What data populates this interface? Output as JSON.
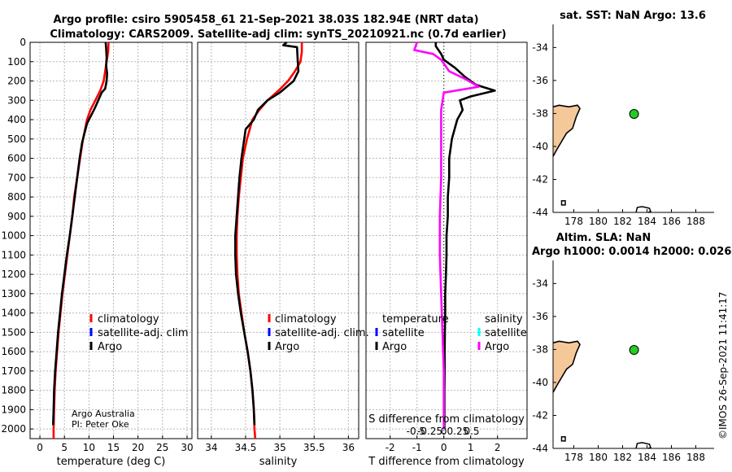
{
  "title": {
    "line1": "Argo profile: csiro 5905458_61 21-Sep-2021 38.03S 182.94E (NRT data)",
    "line2": "Climatology: CARS2009. Satellite-adj clim: synTS_20210921.nc (0.7d earlier)"
  },
  "credit": "Argo Australia",
  "pi": "PI: Peter Oke",
  "timestamp": "©IMOS 26-Sep-2021 11:41:17",
  "colors": {
    "climatology": "#ff0000",
    "satellite": "#0000ff",
    "argo": "#000000",
    "argo_salinity": "#ff00ff",
    "sat_salinity": "#00ffff",
    "land": "#f5c89a",
    "dot": "#22cc22"
  },
  "chart_data": [
    {
      "type": "line",
      "id": "temperature",
      "xlabel": "temperature (deg C)",
      "xlim": [
        -2,
        31
      ],
      "ylim": [
        0,
        2050
      ],
      "xticks": [
        0,
        5,
        10,
        15,
        20,
        25,
        30
      ],
      "xtick_labels": [
        "0",
        "5",
        "10",
        "15",
        "20",
        "25",
        "30"
      ],
      "yticks": [
        0,
        100,
        200,
        300,
        400,
        500,
        600,
        700,
        800,
        900,
        1000,
        1100,
        1200,
        1300,
        1400,
        1500,
        1600,
        1700,
        1800,
        1900,
        2000
      ],
      "ytick_labels": [
        "0",
        "100",
        "200",
        "300",
        "400",
        "500",
        "600",
        "700",
        "800",
        "900",
        "1000",
        "1100",
        "1200",
        "1300",
        "1400",
        "1500",
        "1600",
        "1700",
        "1800",
        "1900",
        "2000"
      ],
      "legend": [
        "climatology",
        "satellite-adj. clim",
        "Argo"
      ],
      "series": [
        {
          "name": "climatology",
          "color": "#ff0000",
          "points": [
            [
              14.0,
              0
            ],
            [
              13.9,
              50
            ],
            [
              13.6,
              100
            ],
            [
              13.3,
              150
            ],
            [
              13.0,
              200
            ],
            [
              12.3,
              250
            ],
            [
              11.3,
              300
            ],
            [
              10.3,
              350
            ],
            [
              9.6,
              400
            ],
            [
              8.8,
              500
            ],
            [
              8.2,
              600
            ],
            [
              7.6,
              700
            ],
            [
              7.0,
              800
            ],
            [
              6.6,
              900
            ],
            [
              6.1,
              1000
            ],
            [
              5.6,
              1100
            ],
            [
              5.1,
              1200
            ],
            [
              4.6,
              1300
            ],
            [
              4.2,
              1400
            ],
            [
              3.8,
              1500
            ],
            [
              3.5,
              1600
            ],
            [
              3.2,
              1700
            ],
            [
              3.0,
              1800
            ],
            [
              2.9,
              1900
            ],
            [
              2.8,
              2000
            ],
            [
              2.8,
              2050
            ]
          ]
        },
        {
          "name": "Argo",
          "color": "#000000",
          "points": [
            [
              13.4,
              0
            ],
            [
              13.5,
              30
            ],
            [
              13.6,
              80
            ],
            [
              13.5,
              120
            ],
            [
              13.7,
              160
            ],
            [
              13.6,
              200
            ],
            [
              13.3,
              240
            ],
            [
              12.6,
              260
            ],
            [
              11.9,
              300
            ],
            [
              11.2,
              340
            ],
            [
              10.4,
              380
            ],
            [
              9.6,
              420
            ],
            [
              9.1,
              470
            ],
            [
              8.6,
              520
            ],
            [
              8.1,
              600
            ],
            [
              7.6,
              700
            ],
            [
              7.1,
              800
            ],
            [
              6.6,
              900
            ],
            [
              6.1,
              1000
            ],
            [
              5.5,
              1100
            ],
            [
              5.0,
              1200
            ],
            [
              4.5,
              1300
            ],
            [
              4.1,
              1400
            ],
            [
              3.7,
              1500
            ],
            [
              3.4,
              1600
            ],
            [
              3.1,
              1700
            ],
            [
              2.9,
              1800
            ],
            [
              2.8,
              1900
            ],
            [
              2.7,
              1980
            ]
          ]
        }
      ]
    },
    {
      "type": "line",
      "id": "salinity",
      "xlabel": "salinity",
      "xlim": [
        33.8,
        36.15
      ],
      "ylim": [
        0,
        2050
      ],
      "xticks": [
        34,
        34.5,
        35,
        35.5,
        36
      ],
      "xtick_labels": [
        "34",
        "34.5",
        "35",
        "35.5",
        "36"
      ],
      "legend": [
        "climatology",
        "satellite-adj. clim.",
        "Argo"
      ],
      "series": [
        {
          "name": "climatology",
          "color": "#ff0000",
          "points": [
            [
              35.32,
              0
            ],
            [
              35.32,
              50
            ],
            [
              35.3,
              100
            ],
            [
              35.22,
              150
            ],
            [
              35.12,
              200
            ],
            [
              34.98,
              250
            ],
            [
              34.82,
              300
            ],
            [
              34.7,
              350
            ],
            [
              34.6,
              400
            ],
            [
              34.52,
              500
            ],
            [
              34.46,
              600
            ],
            [
              34.43,
              700
            ],
            [
              34.4,
              800
            ],
            [
              34.38,
              900
            ],
            [
              34.37,
              1000
            ],
            [
              34.37,
              1100
            ],
            [
              34.38,
              1200
            ],
            [
              34.4,
              1300
            ],
            [
              34.44,
              1400
            ],
            [
              34.48,
              1500
            ],
            [
              34.53,
              1600
            ],
            [
              34.57,
              1700
            ],
            [
              34.6,
              1800
            ],
            [
              34.62,
              1900
            ],
            [
              34.63,
              2000
            ],
            [
              34.64,
              2050
            ]
          ]
        },
        {
          "name": "Argo",
          "color": "#000000",
          "points": [
            [
              35.1,
              0
            ],
            [
              35.05,
              15
            ],
            [
              35.25,
              25
            ],
            [
              35.26,
              90
            ],
            [
              35.27,
              150
            ],
            [
              35.2,
              200
            ],
            [
              35.0,
              260
            ],
            [
              34.82,
              300
            ],
            [
              34.68,
              350
            ],
            [
              34.62,
              400
            ],
            [
              34.5,
              450
            ],
            [
              34.48,
              500
            ],
            [
              34.44,
              600
            ],
            [
              34.41,
              700
            ],
            [
              34.39,
              800
            ],
            [
              34.37,
              900
            ],
            [
              34.35,
              1000
            ],
            [
              34.35,
              1100
            ],
            [
              34.36,
              1200
            ],
            [
              34.39,
              1300
            ],
            [
              34.43,
              1400
            ],
            [
              34.48,
              1500
            ],
            [
              34.53,
              1600
            ],
            [
              34.57,
              1700
            ],
            [
              34.6,
              1800
            ],
            [
              34.62,
              1900
            ],
            [
              34.63,
              1980
            ]
          ]
        }
      ]
    },
    {
      "type": "line",
      "id": "difference",
      "xlabel": "T difference from climatology",
      "top_label": "S difference from climatology",
      "xlim": [
        -2.9,
        3.1
      ],
      "ylim": [
        0,
        2050
      ],
      "xticks": [
        -2,
        -1,
        0,
        1,
        2
      ],
      "xtick_labels": [
        "-2",
        "-1",
        "0",
        "1",
        "2"
      ],
      "s_ticks": [
        -0.5,
        -0.25,
        0,
        0.25,
        0.5
      ],
      "s_tick_labels": [
        "-0.5",
        "-0.25",
        "0",
        "0.25",
        "0.5"
      ],
      "legend_left_title": "temperature",
      "legend_right_title": "salinity",
      "legend_left": [
        "satellite",
        "Argo"
      ],
      "legend_right": [
        "satellite",
        "Argo"
      ],
      "series": [
        {
          "name": "T diff",
          "color": "#000000",
          "points": [
            [
              -0.3,
              0
            ],
            [
              -0.3,
              20
            ],
            [
              -0.1,
              60
            ],
            [
              0.0,
              90
            ],
            [
              0.4,
              130
            ],
            [
              0.8,
              180
            ],
            [
              1.2,
              220
            ],
            [
              1.9,
              250
            ],
            [
              1.0,
              280
            ],
            [
              0.6,
              300
            ],
            [
              0.7,
              350
            ],
            [
              0.5,
              400
            ],
            [
              0.3,
              500
            ],
            [
              0.2,
              600
            ],
            [
              0.2,
              700
            ],
            [
              0.15,
              800
            ],
            [
              0.15,
              900
            ],
            [
              0.1,
              1000
            ],
            [
              0.1,
              1100
            ],
            [
              0.08,
              1200
            ],
            [
              0.05,
              1300
            ],
            [
              0.05,
              1400
            ],
            [
              0.04,
              1500
            ],
            [
              0.03,
              1600
            ],
            [
              0.03,
              1700
            ],
            [
              0.02,
              1800
            ],
            [
              0.02,
              1900
            ],
            [
              0.02,
              2000
            ]
          ]
        },
        {
          "name": "S diff",
          "color": "#ff00ff",
          "points": [
            [
              -1.0,
              0
            ],
            [
              -1.1,
              40
            ],
            [
              -0.4,
              60
            ],
            [
              -0.1,
              90
            ],
            [
              0.2,
              150
            ],
            [
              0.8,
              190
            ],
            [
              1.3,
              230
            ],
            [
              0.0,
              260
            ],
            [
              -0.1,
              350
            ],
            [
              -0.1,
              500
            ],
            [
              -0.1,
              700
            ],
            [
              -0.15,
              900
            ],
            [
              -0.15,
              1100
            ],
            [
              -0.1,
              1300
            ],
            [
              -0.05,
              1500
            ],
            [
              0.0,
              1700
            ],
            [
              0.0,
              1900
            ],
            [
              0.0,
              2000
            ]
          ]
        }
      ]
    },
    {
      "type": "scatter",
      "id": "map_sst",
      "title": "sat. SST: NaN Argo: 13.6",
      "xlim": [
        176.3,
        189.5
      ],
      "ylim": [
        -44,
        -32.6
      ],
      "xticks": [
        178,
        180,
        182,
        184,
        186,
        188
      ],
      "xtick_labels": [
        "178",
        "180",
        "182",
        "184",
        "186",
        "188"
      ],
      "yticks": [
        -34,
        -36,
        -38,
        -40,
        -42,
        -44
      ],
      "ytick_labels": [
        "-34",
        "-36",
        "-38",
        "-40",
        "-42",
        "-44"
      ],
      "point": [
        182.94,
        -38.03
      ]
    },
    {
      "type": "scatter",
      "id": "map_sla",
      "title": "Altim. SLA: NaN",
      "subtitle": "Argo h1000: 0.0014 h2000: 0.026",
      "xlim": [
        176.3,
        189.5
      ],
      "ylim": [
        -44,
        -32.6
      ],
      "xticks": [
        178,
        180,
        182,
        184,
        186,
        188
      ],
      "xtick_labels": [
        "178",
        "180",
        "182",
        "184",
        "186",
        "188"
      ],
      "yticks": [
        -34,
        -36,
        -38,
        -40,
        -42,
        -44
      ],
      "ytick_labels": [
        "-34",
        "-36",
        "-38",
        "-40",
        "-42",
        "-44"
      ],
      "point": [
        182.94,
        -38.03
      ]
    }
  ]
}
